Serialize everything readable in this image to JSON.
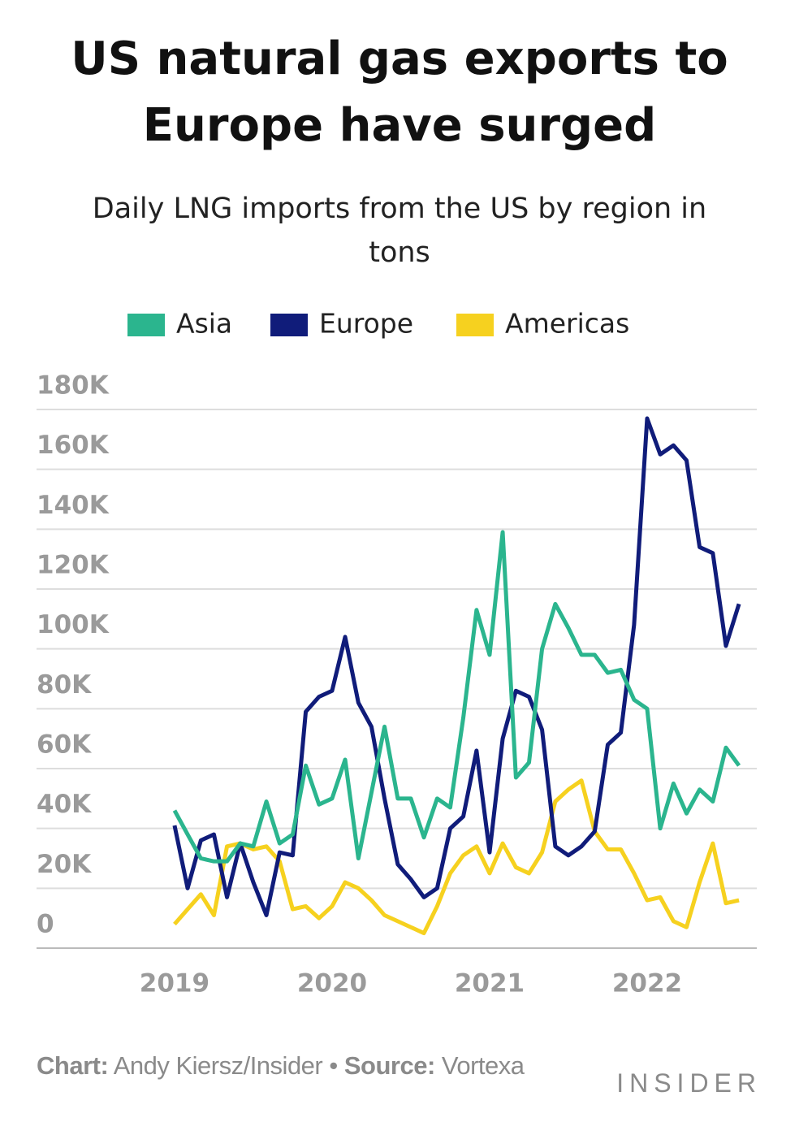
{
  "chart_data": {
    "type": "line",
    "title": [
      "US natural gas exports to",
      "Europe have surged"
    ],
    "subtitle": [
      "Daily LNG imports from the US by region in",
      "tons"
    ],
    "x": [
      2019,
      2019.083,
      2019.167,
      2019.25,
      2019.333,
      2019.417,
      2019.5,
      2019.583,
      2019.667,
      2019.75,
      2019.833,
      2019.917,
      2020,
      2020.083,
      2020.167,
      2020.25,
      2020.333,
      2020.417,
      2020.5,
      2020.583,
      2020.667,
      2020.75,
      2020.833,
      2020.917,
      2021,
      2021.083,
      2021.167,
      2021.25,
      2021.333,
      2021.417,
      2021.5,
      2021.583,
      2021.667,
      2021.75,
      2021.833,
      2021.917,
      2022,
      2022.083,
      2022.167,
      2022.25,
      2022.333,
      2022.417,
      2022.5,
      2022.583
    ],
    "series": [
      {
        "name": "Asia",
        "color": "#2bb58e",
        "values": [
          46000,
          38000,
          30000,
          29000,
          29000,
          35000,
          34000,
          49000,
          35000,
          38000,
          61000,
          48000,
          50000,
          63000,
          30000,
          52000,
          74000,
          50000,
          50000,
          37000,
          50000,
          47000,
          77000,
          113000,
          98000,
          139000,
          57000,
          62000,
          100000,
          115000,
          107000,
          98000,
          98000,
          92000,
          93000,
          83000,
          80000,
          40000,
          55000,
          45000,
          53000,
          49000,
          67000,
          61000
        ]
      },
      {
        "name": "Europe",
        "color": "#101c7a",
        "values": [
          41000,
          20000,
          36000,
          38000,
          17000,
          35000,
          22000,
          11000,
          32000,
          31000,
          79000,
          84000,
          86000,
          104000,
          82000,
          74000,
          50000,
          28000,
          23000,
          17000,
          20000,
          40000,
          44000,
          66000,
          32000,
          70000,
          86000,
          84000,
          73000,
          34000,
          31000,
          34000,
          39000,
          68000,
          72000,
          108000,
          177000,
          165000,
          168000,
          163000,
          134000,
          132000,
          101000,
          115000
        ]
      },
      {
        "name": "Americas",
        "color": "#f6d11f",
        "values": [
          8000,
          13000,
          18000,
          11000,
          34000,
          35000,
          33000,
          34000,
          29000,
          13000,
          14000,
          10000,
          14000,
          22000,
          20000,
          16000,
          11000,
          9000,
          7000,
          5000,
          14000,
          25000,
          31000,
          34000,
          25000,
          35000,
          27000,
          25000,
          32000,
          49000,
          53000,
          56000,
          39000,
          33000,
          33000,
          25000,
          16000,
          17000,
          9000,
          7000,
          22000,
          35000,
          15000,
          16000
        ]
      }
    ],
    "xlim": [
      2018.124,
      2022.696
    ],
    "xticks": [
      2019,
      2020,
      2021,
      2022
    ],
    "ylim": [
      0,
      180000
    ],
    "yticks": [
      0,
      {
        "value": 20000,
        "label": "20K"
      },
      {
        "value": 40000,
        "label": "40K"
      },
      {
        "value": 60000,
        "label": "60K"
      },
      {
        "value": 80000,
        "label": "80K"
      },
      {
        "value": 100000,
        "label": "100K"
      },
      {
        "value": 120000,
        "label": "120K"
      },
      {
        "value": 140000,
        "label": "140K"
      },
      {
        "value": 160000,
        "label": "160K"
      },
      {
        "value": 180000,
        "label": "180K"
      }
    ],
    "grid": true,
    "legend": "top",
    "footer": {
      "chart_label": "Chart:",
      "chart_by": "Andy Kiersz/Insider •",
      "source_label": "Source:",
      "source": "Vortexa"
    },
    "logo": "INSIDER"
  }
}
